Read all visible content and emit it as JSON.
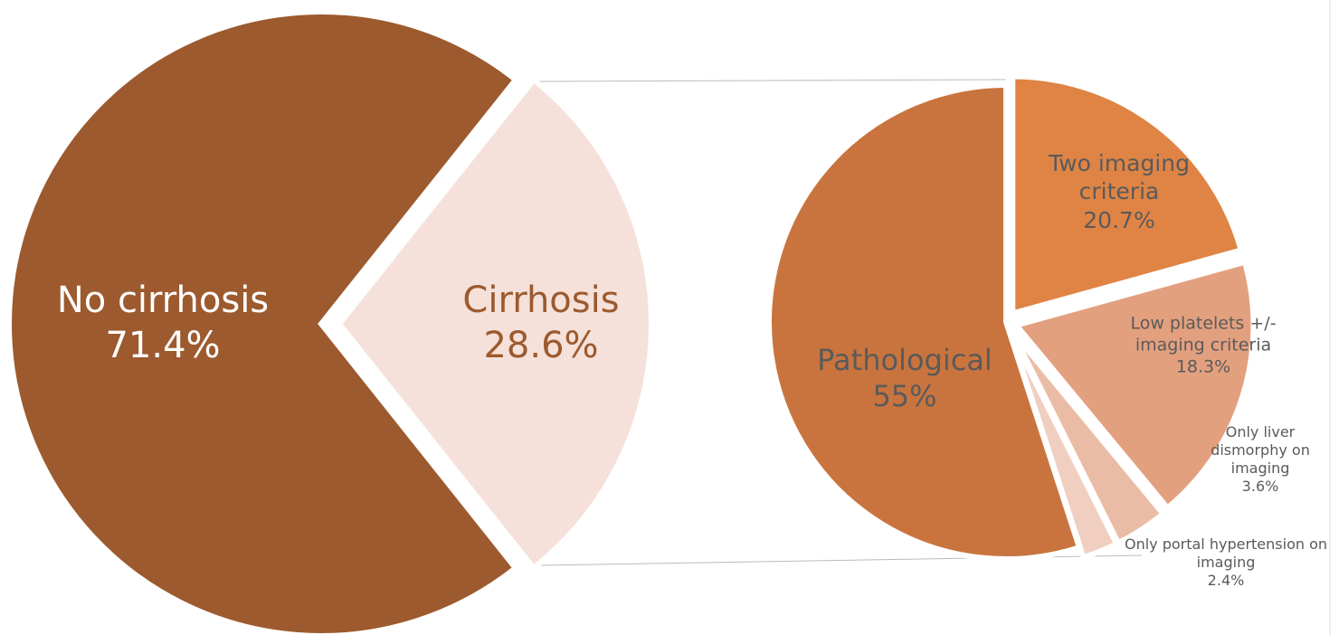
{
  "chart_data": [
    {
      "type": "pie",
      "categories": [
        "No cirrhosis",
        "Cirrhosis"
      ],
      "values": [
        71.4,
        28.6
      ],
      "value_labels": [
        "71.4%",
        "28.6%"
      ],
      "colors": [
        "#9c5a2e",
        "#f5e1d9"
      ]
    },
    {
      "type": "pie",
      "categories": [
        "Two imaging criteria",
        "Low platelets +/- imaging criteria",
        "Only liver dismorphy on imaging",
        "Only portal hypertension on imaging",
        "Pathological"
      ],
      "values": [
        20.7,
        18.3,
        3.6,
        2.4,
        55
      ],
      "value_labels": [
        "20.7%",
        "18.3%",
        "3.6%",
        "2.4%",
        "55%"
      ],
      "colors": [
        "#df8445",
        "#e3a07f",
        "#ebbca5",
        "#f0cfc0",
        "#c9743e"
      ]
    }
  ]
}
